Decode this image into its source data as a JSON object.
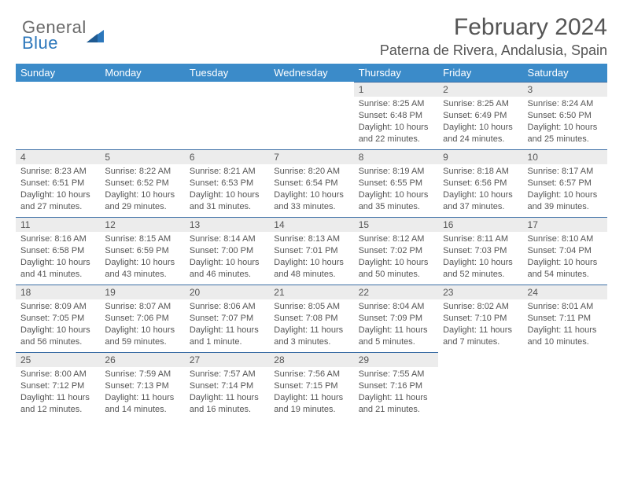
{
  "logo": {
    "general": "General",
    "blue": "Blue"
  },
  "title": "February 2024",
  "location": "Paterna de Rivera, Andalusia, Spain",
  "colors": {
    "header_bg": "#3b8bc9",
    "daynum_bg": "#ececec",
    "border": "#3b6ea5",
    "text": "#555555",
    "logo_gray": "#6a6a6a",
    "logo_blue": "#2c77bb"
  },
  "dayNames": [
    "Sunday",
    "Monday",
    "Tuesday",
    "Wednesday",
    "Thursday",
    "Friday",
    "Saturday"
  ],
  "weeks": [
    [
      null,
      null,
      null,
      null,
      {
        "n": "1",
        "sr": "8:25 AM",
        "ss": "6:48 PM",
        "dl": "10 hours and 22 minutes."
      },
      {
        "n": "2",
        "sr": "8:25 AM",
        "ss": "6:49 PM",
        "dl": "10 hours and 24 minutes."
      },
      {
        "n": "3",
        "sr": "8:24 AM",
        "ss": "6:50 PM",
        "dl": "10 hours and 25 minutes."
      }
    ],
    [
      {
        "n": "4",
        "sr": "8:23 AM",
        "ss": "6:51 PM",
        "dl": "10 hours and 27 minutes."
      },
      {
        "n": "5",
        "sr": "8:22 AM",
        "ss": "6:52 PM",
        "dl": "10 hours and 29 minutes."
      },
      {
        "n": "6",
        "sr": "8:21 AM",
        "ss": "6:53 PM",
        "dl": "10 hours and 31 minutes."
      },
      {
        "n": "7",
        "sr": "8:20 AM",
        "ss": "6:54 PM",
        "dl": "10 hours and 33 minutes."
      },
      {
        "n": "8",
        "sr": "8:19 AM",
        "ss": "6:55 PM",
        "dl": "10 hours and 35 minutes."
      },
      {
        "n": "9",
        "sr": "8:18 AM",
        "ss": "6:56 PM",
        "dl": "10 hours and 37 minutes."
      },
      {
        "n": "10",
        "sr": "8:17 AM",
        "ss": "6:57 PM",
        "dl": "10 hours and 39 minutes."
      }
    ],
    [
      {
        "n": "11",
        "sr": "8:16 AM",
        "ss": "6:58 PM",
        "dl": "10 hours and 41 minutes."
      },
      {
        "n": "12",
        "sr": "8:15 AM",
        "ss": "6:59 PM",
        "dl": "10 hours and 43 minutes."
      },
      {
        "n": "13",
        "sr": "8:14 AM",
        "ss": "7:00 PM",
        "dl": "10 hours and 46 minutes."
      },
      {
        "n": "14",
        "sr": "8:13 AM",
        "ss": "7:01 PM",
        "dl": "10 hours and 48 minutes."
      },
      {
        "n": "15",
        "sr": "8:12 AM",
        "ss": "7:02 PM",
        "dl": "10 hours and 50 minutes."
      },
      {
        "n": "16",
        "sr": "8:11 AM",
        "ss": "7:03 PM",
        "dl": "10 hours and 52 minutes."
      },
      {
        "n": "17",
        "sr": "8:10 AM",
        "ss": "7:04 PM",
        "dl": "10 hours and 54 minutes."
      }
    ],
    [
      {
        "n": "18",
        "sr": "8:09 AM",
        "ss": "7:05 PM",
        "dl": "10 hours and 56 minutes."
      },
      {
        "n": "19",
        "sr": "8:07 AM",
        "ss": "7:06 PM",
        "dl": "10 hours and 59 minutes."
      },
      {
        "n": "20",
        "sr": "8:06 AM",
        "ss": "7:07 PM",
        "dl": "11 hours and 1 minute."
      },
      {
        "n": "21",
        "sr": "8:05 AM",
        "ss": "7:08 PM",
        "dl": "11 hours and 3 minutes."
      },
      {
        "n": "22",
        "sr": "8:04 AM",
        "ss": "7:09 PM",
        "dl": "11 hours and 5 minutes."
      },
      {
        "n": "23",
        "sr": "8:02 AM",
        "ss": "7:10 PM",
        "dl": "11 hours and 7 minutes."
      },
      {
        "n": "24",
        "sr": "8:01 AM",
        "ss": "7:11 PM",
        "dl": "11 hours and 10 minutes."
      }
    ],
    [
      {
        "n": "25",
        "sr": "8:00 AM",
        "ss": "7:12 PM",
        "dl": "11 hours and 12 minutes."
      },
      {
        "n": "26",
        "sr": "7:59 AM",
        "ss": "7:13 PM",
        "dl": "11 hours and 14 minutes."
      },
      {
        "n": "27",
        "sr": "7:57 AM",
        "ss": "7:14 PM",
        "dl": "11 hours and 16 minutes."
      },
      {
        "n": "28",
        "sr": "7:56 AM",
        "ss": "7:15 PM",
        "dl": "11 hours and 19 minutes."
      },
      {
        "n": "29",
        "sr": "7:55 AM",
        "ss": "7:16 PM",
        "dl": "11 hours and 21 minutes."
      },
      null,
      null
    ]
  ],
  "labels": {
    "sunrise": "Sunrise:",
    "sunset": "Sunset:",
    "daylight": "Daylight:"
  }
}
